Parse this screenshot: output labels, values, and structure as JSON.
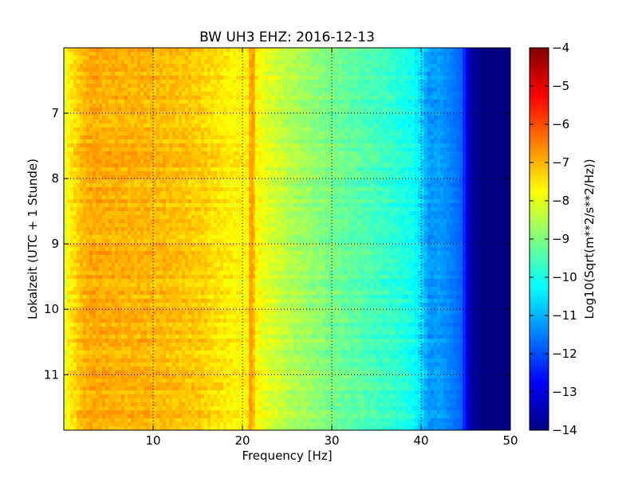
{
  "chart_data": {
    "type": "heatmap",
    "title": "BW UH3 EHZ: 2016-12-13",
    "xlabel": "Frequency [Hz]",
    "ylabel": "Lokalzeit (UTC + 1 Stunde)",
    "colorbar_label": "Log10(Sqrt(m**2/s**2/Hz))",
    "xlim": [
      0,
      50
    ],
    "ylim": [
      11.85,
      6.0
    ],
    "y_inverted": true,
    "x_ticks": [
      10,
      20,
      30,
      40,
      50
    ],
    "x_tick_labels": [
      "10",
      "20",
      "30",
      "40",
      "50"
    ],
    "y_ticks": [
      7,
      8,
      9,
      10,
      11
    ],
    "y_tick_labels": [
      "7",
      "8",
      "9",
      "10",
      "11"
    ],
    "colorbar_range": [
      -14,
      -4
    ],
    "colorbar_ticks": [
      -4,
      -5,
      -6,
      -7,
      -8,
      -9,
      -10,
      -11,
      -12,
      -13,
      -14
    ],
    "colorbar_tick_labels": [
      "−4",
      "−5",
      "−6",
      "−7",
      "−8",
      "−9",
      "−10",
      "−11",
      "−12",
      "−13",
      "−14"
    ],
    "colormap": "jet",
    "grid": true,
    "spectrum_profile": {
      "frequency_hz": [
        0,
        0.5,
        1,
        2,
        3,
        5,
        8,
        12,
        15,
        17,
        19,
        20.5,
        21,
        21.5,
        23,
        26,
        30,
        34,
        37,
        39,
        40,
        40.5,
        41,
        42,
        43,
        44.5,
        45.5,
        47,
        50
      ],
      "log10_psd": [
        -8.0,
        -7.7,
        -7.5,
        -7.1,
        -6.9,
        -6.95,
        -7.0,
        -7.1,
        -7.25,
        -7.45,
        -7.65,
        -7.7,
        -6.8,
        -7.7,
        -8.1,
        -8.6,
        -9.1,
        -9.5,
        -9.8,
        -10.1,
        -10.6,
        -11.0,
        -11.3,
        -11.2,
        -11.4,
        -11.8,
        -13.6,
        -14.0,
        -14.0
      ]
    },
    "spectral_line": {
      "label": "",
      "frequency_hz_start": 21.2,
      "frequency_hz_end": 20.9,
      "log10_psd": -6.8
    }
  },
  "colors": {
    "jet_stops": [
      "#00007f",
      "#0000ff",
      "#007fff",
      "#00ffff",
      "#7fff7f",
      "#ffff00",
      "#ff7f00",
      "#ff0000",
      "#7f0000"
    ]
  }
}
